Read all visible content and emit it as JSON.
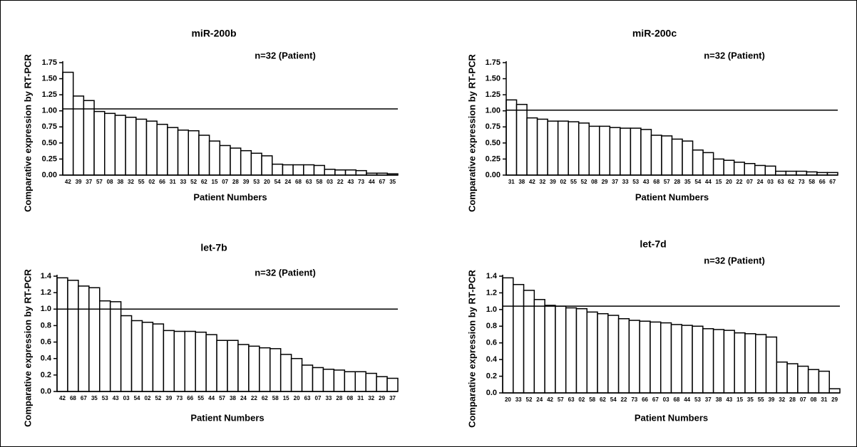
{
  "chart_data": [
    {
      "type": "bar",
      "title": "miR-200b",
      "annotation": "n=32 (Patient)",
      "y_label": "Comparative expression by RT-PCR",
      "x_label": "Patient Numbers",
      "categories": [
        "42",
        "39",
        "37",
        "57",
        "08",
        "38",
        "32",
        "55",
        "02",
        "66",
        "31",
        "33",
        "52",
        "62",
        "15",
        "07",
        "28",
        "39",
        "53",
        "20",
        "54",
        "24",
        "68",
        "63",
        "58",
        "03",
        "22",
        "43",
        "73",
        "44",
        "67",
        "35"
      ],
      "values": [
        1.6,
        1.23,
        1.16,
        0.99,
        0.96,
        0.93,
        0.9,
        0.87,
        0.84,
        0.79,
        0.74,
        0.7,
        0.69,
        0.62,
        0.53,
        0.46,
        0.42,
        0.38,
        0.34,
        0.3,
        0.17,
        0.16,
        0.16,
        0.16,
        0.15,
        0.09,
        0.08,
        0.08,
        0.07,
        0.03,
        0.03,
        0.02
      ],
      "color": "#ffffff",
      "reference_line": 1.03,
      "ylim": [
        0,
        1.75
      ],
      "yticks": [
        {
          "value": 0,
          "label": "0.00"
        },
        0.25,
        {
          "value": 0.5,
          "label": "0.50"
        },
        0.75,
        {
          "value": 1,
          "label": "1.00"
        },
        1.25,
        {
          "value": 1.5,
          "label": "1.50"
        },
        1.75
      ]
    },
    {
      "type": "bar",
      "title": "miR-200c",
      "annotation": "n=32 (Patient)",
      "y_label": "Comparative expression by RT-PCR",
      "x_label": "Patient Numbers",
      "categories": [
        "31",
        "38",
        "42",
        "32",
        "39",
        "02",
        "55",
        "52",
        "08",
        "29",
        "37",
        "33",
        "53",
        "43",
        "68",
        "57",
        "28",
        "35",
        "54",
        "44",
        "15",
        "20",
        "22",
        "07",
        "24",
        "03",
        "63",
        "62",
        "73",
        "58",
        "66",
        "67"
      ],
      "values": [
        1.17,
        1.1,
        0.89,
        0.87,
        0.84,
        0.84,
        0.83,
        0.81,
        0.76,
        0.76,
        0.74,
        0.73,
        0.73,
        0.71,
        0.62,
        0.61,
        0.56,
        0.53,
        0.39,
        0.35,
        0.25,
        0.23,
        0.2,
        0.18,
        0.15,
        0.14,
        0.06,
        0.06,
        0.06,
        0.05,
        0.04,
        0.04
      ],
      "color": "#ffffff",
      "reference_line": 1.01,
      "ylim": [
        0,
        1.75
      ],
      "yticks": [
        {
          "value": 0,
          "label": "0.00"
        },
        0.25,
        {
          "value": 0.5,
          "label": "0.50"
        },
        0.75,
        {
          "value": 1,
          "label": "1.00"
        },
        1.25,
        {
          "value": 1.5,
          "label": "1.50"
        },
        1.75
      ]
    },
    {
      "type": "bar",
      "title": "let-7b",
      "annotation": "n=32 (Patient)",
      "y_label": "Comparative expression by RT-PCR",
      "x_label": "Patient Numbers",
      "categories": [
        "42",
        "68",
        "67",
        "35",
        "53",
        "43",
        "03",
        "54",
        "02",
        "52",
        "39",
        "73",
        "66",
        "55",
        "44",
        "57",
        "38",
        "24",
        "22",
        "62",
        "58",
        "15",
        "20",
        "63",
        "07",
        "33",
        "28",
        "08",
        "31",
        "32",
        "29",
        "37"
      ],
      "values": [
        1.38,
        1.35,
        1.28,
        1.26,
        1.1,
        1.09,
        0.92,
        0.86,
        0.84,
        0.82,
        0.74,
        0.73,
        0.73,
        0.72,
        0.69,
        0.62,
        0.62,
        0.57,
        0.55,
        0.53,
        0.52,
        0.45,
        0.4,
        0.32,
        0.29,
        0.27,
        0.26,
        0.24,
        0.24,
        0.22,
        0.18,
        0.16
      ],
      "color": "#ffffff",
      "reference_line": 1.0,
      "ylim": [
        0,
        1.4
      ],
      "yticks": [
        {
          "value": 0,
          "label": "0.0"
        },
        0.2,
        0.4,
        0.6,
        0.8,
        {
          "value": 1,
          "label": "1.0"
        },
        1.2,
        1.4
      ]
    },
    {
      "type": "bar",
      "title": "let-7d",
      "annotation": "n=32 (Patient)",
      "y_label": "Comparative expression by RT-PCR",
      "x_label": "Patient Numbers",
      "categories": [
        "20",
        "33",
        "52",
        "24",
        "42",
        "57",
        "63",
        "02",
        "58",
        "62",
        "54",
        "22",
        "73",
        "66",
        "67",
        "03",
        "68",
        "44",
        "53",
        "37",
        "38",
        "43",
        "15",
        "35",
        "55",
        "39",
        "32",
        "28",
        "07",
        "08",
        "31",
        "29"
      ],
      "values": [
        1.38,
        1.3,
        1.23,
        1.12,
        1.05,
        1.04,
        1.02,
        1.01,
        0.97,
        0.95,
        0.93,
        0.89,
        0.87,
        0.86,
        0.85,
        0.84,
        0.82,
        0.81,
        0.8,
        0.77,
        0.76,
        0.75,
        0.72,
        0.71,
        0.7,
        0.67,
        0.37,
        0.35,
        0.32,
        0.28,
        0.26,
        0.05
      ],
      "color": "#ffffff",
      "reference_line": 1.04,
      "ylim": [
        0,
        1.4
      ],
      "yticks": [
        {
          "value": 0,
          "label": "0.0"
        },
        0.2,
        0.4,
        0.6,
        0.8,
        {
          "value": 1,
          "label": "1.0"
        },
        1.2,
        1.4
      ]
    }
  ]
}
